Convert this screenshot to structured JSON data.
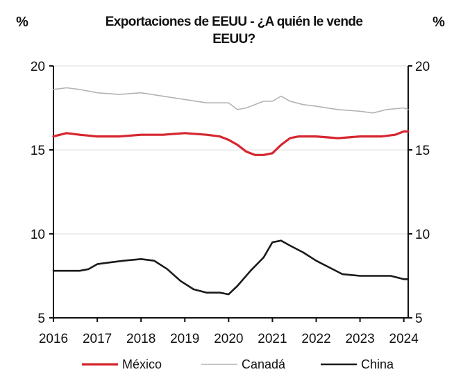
{
  "chart_data": {
    "type": "line",
    "title_line1": "Exportaciones de EEUU - ¿A quién le vende",
    "title_line2": "EEUU?",
    "left_unit": "%",
    "right_unit": "%",
    "ylim": [
      5,
      20
    ],
    "y_ticks": [
      "5",
      "10",
      "15",
      "20"
    ],
    "right_ticks": [
      "5",
      "10",
      "15",
      "20"
    ],
    "x_ticks": [
      "2016",
      "2017",
      "2018",
      "2019",
      "2020",
      "2021",
      "2022",
      "2023",
      "2024"
    ],
    "xlim": [
      2016,
      2024.1
    ],
    "grid": "horizontal",
    "legend_position": "bottom",
    "series": [
      {
        "name": "México",
        "color": "#d6262f",
        "x": [
          2016.0,
          2016.3,
          2016.6,
          2017.0,
          2017.5,
          2018.0,
          2018.5,
          2019.0,
          2019.5,
          2019.8,
          2020.0,
          2020.2,
          2020.4,
          2020.6,
          2020.8,
          2021.0,
          2021.2,
          2021.4,
          2021.6,
          2022.0,
          2022.5,
          2023.0,
          2023.5,
          2023.8,
          2024.0,
          2024.1
        ],
        "values": [
          15.8,
          16.0,
          15.9,
          15.8,
          15.8,
          15.9,
          15.9,
          16.0,
          15.9,
          15.8,
          15.6,
          15.3,
          14.9,
          14.7,
          14.7,
          14.8,
          15.3,
          15.7,
          15.8,
          15.8,
          15.7,
          15.8,
          15.8,
          15.9,
          16.1,
          16.1
        ]
      },
      {
        "name": "Canadá",
        "color": "#b3b3b3",
        "x": [
          2016.0,
          2016.3,
          2016.6,
          2017.0,
          2017.5,
          2018.0,
          2018.5,
          2019.0,
          2019.5,
          2020.0,
          2020.2,
          2020.4,
          2020.6,
          2020.8,
          2021.0,
          2021.2,
          2021.4,
          2021.7,
          2022.0,
          2022.5,
          2023.0,
          2023.3,
          2023.6,
          2024.0,
          2024.1
        ],
        "values": [
          18.6,
          18.7,
          18.6,
          18.4,
          18.3,
          18.4,
          18.2,
          18.0,
          17.8,
          17.8,
          17.4,
          17.5,
          17.7,
          17.9,
          17.9,
          18.2,
          17.9,
          17.7,
          17.6,
          17.4,
          17.3,
          17.2,
          17.4,
          17.5,
          17.4
        ]
      },
      {
        "name": "China",
        "color": "#1a1a1a",
        "x": [
          2016.0,
          2016.3,
          2016.6,
          2016.8,
          2017.0,
          2017.3,
          2017.6,
          2018.0,
          2018.3,
          2018.6,
          2018.9,
          2019.2,
          2019.5,
          2019.8,
          2020.0,
          2020.2,
          2020.5,
          2020.8,
          2021.0,
          2021.2,
          2021.4,
          2021.7,
          2022.0,
          2022.3,
          2022.6,
          2023.0,
          2023.3,
          2023.7,
          2024.0,
          2024.1
        ],
        "values": [
          7.8,
          7.8,
          7.8,
          7.9,
          8.2,
          8.3,
          8.4,
          8.5,
          8.4,
          7.9,
          7.2,
          6.7,
          6.5,
          6.5,
          6.4,
          6.9,
          7.8,
          8.6,
          9.5,
          9.6,
          9.3,
          8.9,
          8.4,
          8.0,
          7.6,
          7.5,
          7.5,
          7.5,
          7.3,
          7.3
        ]
      }
    ]
  }
}
